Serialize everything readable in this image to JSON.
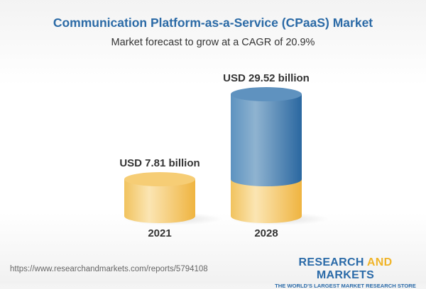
{
  "title": "Communication Platform-as-a-Service (CPaaS) Market",
  "subtitle": "Market forecast to grow at a CAGR of 20.9%",
  "chart_data": {
    "type": "bar",
    "style": "3d-cylinder",
    "categories": [
      "2021",
      "2028"
    ],
    "values": [
      7.81,
      29.52
    ],
    "data_labels": [
      "USD 7.81 billion",
      "USD 29.52 billion"
    ],
    "unit": "USD billion",
    "colors": {
      "base": "#f3c25a",
      "growth": "#3a78b0"
    },
    "grid": false,
    "axes_visible": false
  },
  "footer": {
    "url": "https://www.researchandmarkets.com/reports/5794108",
    "logo_part1": "RESEARCH ",
    "logo_part2": "AND",
    "logo_part3": " MARKETS",
    "logo_tagline": "THE WORLD'S LARGEST MARKET RESEARCH STORE"
  }
}
